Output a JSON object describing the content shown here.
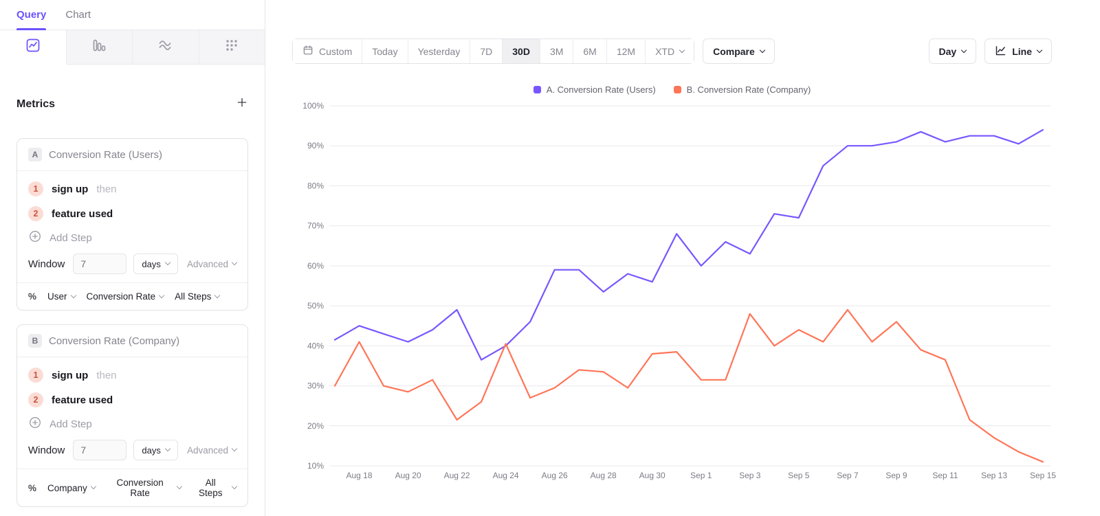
{
  "sidebar": {
    "tabs": [
      {
        "label": "Query",
        "active": true
      },
      {
        "label": "Chart",
        "active": false
      }
    ],
    "icon_tabs": [
      {
        "name": "insights",
        "icon": "line-chart-icon",
        "selected": true
      },
      {
        "name": "funnels",
        "icon": "bar-chart-icon",
        "selected": false
      },
      {
        "name": "flows",
        "icon": "flows-waves-icon",
        "selected": false
      },
      {
        "name": "retention",
        "icon": "retention-dots-icon",
        "selected": false
      }
    ],
    "metrics_header": "Metrics",
    "cards": [
      {
        "letter": "A",
        "title": "Conversion Rate (Users)",
        "steps": [
          {
            "num": "1",
            "event": "sign up",
            "suffix": "then"
          },
          {
            "num": "2",
            "event": "feature used",
            "suffix": ""
          }
        ],
        "add_step_label": "Add Step",
        "window_label": "Window",
        "window_value": "7",
        "window_unit": "days",
        "advanced_label": "Advanced",
        "measure_symbol": "%",
        "measure_entity": "User",
        "measure_metric": "Conversion Rate",
        "measure_steps": "All Steps"
      },
      {
        "letter": "B",
        "title": "Conversion Rate (Company)",
        "steps": [
          {
            "num": "1",
            "event": "sign up",
            "suffix": "then"
          },
          {
            "num": "2",
            "event": "feature used",
            "suffix": ""
          }
        ],
        "add_step_label": "Add Step",
        "window_label": "Window",
        "window_value": "7",
        "window_unit": "days",
        "advanced_label": "Advanced",
        "measure_symbol": "%",
        "measure_entity": "Company",
        "measure_metric": "Conversion Rate",
        "measure_steps": "All Steps"
      }
    ]
  },
  "toolbar": {
    "date_buttons": [
      "Custom",
      "Today",
      "Yesterday",
      "7D",
      "30D",
      "3M",
      "6M",
      "12M",
      "XTD"
    ],
    "selected_range": "30D",
    "compare_label": "Compare",
    "granularity_label": "Day",
    "chart_type_label": "Line"
  },
  "legend": [
    {
      "label": "A. Conversion Rate (Users)",
      "color": "#7856FF"
    },
    {
      "label": "B. Conversion Rate (Company)",
      "color": "#FF7557"
    }
  ],
  "colors": {
    "accent_purple": "#6A52FF",
    "series_a": "#7856FF",
    "series_b": "#FF7557",
    "step_badge_bg": "#FBDCD4",
    "step_badge_text": "#CE5340",
    "gridline": "#E9E9ED",
    "axis_text": "#7B7B86"
  },
  "chart_data": {
    "type": "line",
    "title": "",
    "grid": "horizontal",
    "legend_position": "top-center",
    "ylim": [
      10,
      100
    ],
    "y_unit": "%",
    "y_ticks": [
      10,
      20,
      30,
      40,
      50,
      60,
      70,
      80,
      90,
      100
    ],
    "x": [
      "Aug 17",
      "Aug 18",
      "Aug 19",
      "Aug 20",
      "Aug 21",
      "Aug 22",
      "Aug 23",
      "Aug 24",
      "Aug 25",
      "Aug 26",
      "Aug 27",
      "Aug 28",
      "Aug 29",
      "Aug 30",
      "Aug 31",
      "Sep 1",
      "Sep 2",
      "Sep 3",
      "Sep 4",
      "Sep 5",
      "Sep 6",
      "Sep 7",
      "Sep 8",
      "Sep 9",
      "Sep 10",
      "Sep 11",
      "Sep 12",
      "Sep 13",
      "Sep 14",
      "Sep 15"
    ],
    "x_ticks": [
      "Aug 18",
      "Aug 20",
      "Aug 22",
      "Aug 24",
      "Aug 26",
      "Aug 28",
      "Aug 30",
      "Sep 1",
      "Sep 3",
      "Sep 5",
      "Sep 7",
      "Sep 9",
      "Sep 11",
      "Sep 13",
      "Sep 15"
    ],
    "series": [
      {
        "name": "A. Conversion Rate (Users)",
        "color": "#7856FF",
        "values": [
          41.5,
          45,
          43,
          41,
          44,
          49,
          36.5,
          40,
          46,
          59,
          59,
          53.5,
          58,
          56,
          68,
          60,
          66,
          63,
          73,
          72,
          85,
          90,
          90,
          91,
          93.5,
          91,
          92.5,
          92.5,
          90.5,
          94
        ]
      },
      {
        "name": "B. Conversion Rate (Company)",
        "color": "#FF7557",
        "values": [
          30,
          41,
          30,
          28.5,
          31.5,
          21.5,
          26,
          40.5,
          27,
          29.5,
          34,
          33.5,
          29.5,
          38,
          38.5,
          31.5,
          31.5,
          48,
          40,
          44,
          41,
          49,
          41,
          46,
          39,
          36.5,
          21.5,
          17,
          13.5,
          11
        ]
      }
    ]
  }
}
